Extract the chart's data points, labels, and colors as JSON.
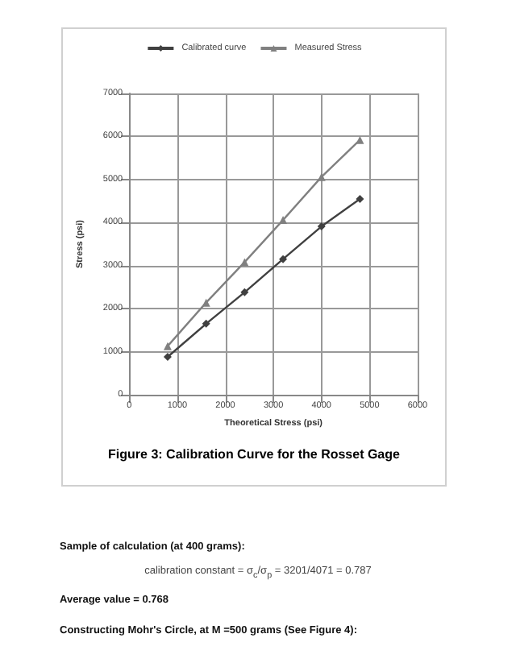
{
  "chart_data": {
    "type": "line",
    "title": "Figure 3: Calibration Curve for the Rosset Gage",
    "xlabel": "Theoretical Stress (psi)",
    "ylabel": "Stress (psi)",
    "x": [
      800,
      1600,
      2400,
      3200,
      4000,
      4800
    ],
    "series": [
      {
        "name": "Calibrated curve",
        "color": "#404040",
        "marker": "diamond",
        "values": [
          880,
          1650,
          2380,
          3150,
          3910,
          4550
        ]
      },
      {
        "name": "Measured Stress",
        "color": "#808080",
        "marker": "triangle",
        "values": [
          1130,
          2140,
          3080,
          4060,
          5060,
          5920
        ]
      }
    ],
    "xlim": [
      0,
      6000
    ],
    "xticks": [
      0,
      1000,
      2000,
      3000,
      4000,
      5000,
      6000
    ],
    "ylim": [
      0,
      7000
    ],
    "yticks": [
      0,
      1000,
      2000,
      3000,
      4000,
      5000,
      6000,
      7000
    ],
    "grid": true,
    "legend": "top",
    "annotations": [
      "Sample of calculation (at 400 grams):",
      "calibration constant = σ$_{c}$/σ$_{p}$ = 3201/4071 = 0.787",
      "Average value = 0.768",
      "Constructing Mohr's Circle, at M =500 grams (See Figure 4):"
    ]
  }
}
